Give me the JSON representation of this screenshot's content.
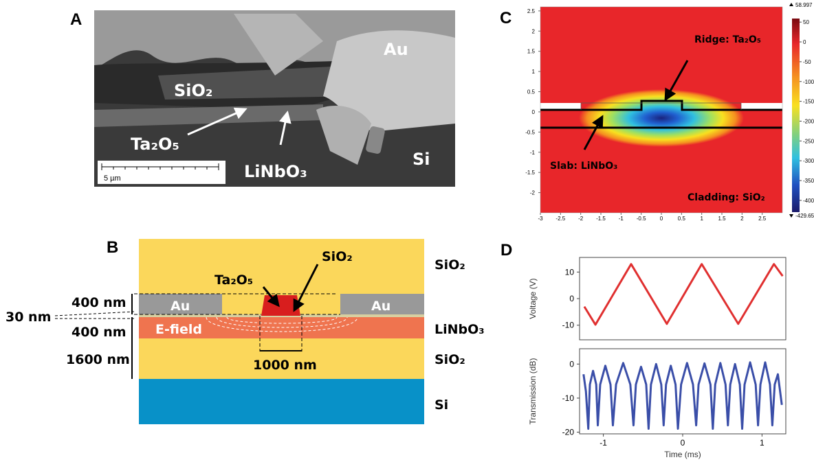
{
  "panel_labels": [
    "A",
    "B",
    "C",
    "D"
  ],
  "sem": {
    "labels": [
      "Au",
      "SiO₂",
      "Ta₂O₅",
      "LiNbO₃",
      "Si"
    ],
    "scale_bar": "5 µm"
  },
  "schematic": {
    "layers": [
      "SiO₂",
      "LiNbO₃",
      "SiO₂",
      "Si"
    ],
    "ridge": "Ta₂O₅",
    "ridge_top": "SiO₂",
    "electrodes": [
      "Au",
      "Au"
    ],
    "field": "E-field",
    "dimensions": [
      "400 nm",
      "30 nm",
      "400 nm",
      "1600 nm",
      "1000 nm"
    ]
  },
  "chart_data": [
    {
      "type": "heatmap",
      "annotations": [
        "Ridge: Ta₂O₅",
        "Slab: LiNbO₃",
        "Cladding: SiO₂"
      ],
      "xlim": [
        -3,
        3
      ],
      "xticks": [
        -3,
        -2.5,
        -2,
        -1.5,
        -1,
        -0.5,
        0,
        0.5,
        1,
        1.5,
        2,
        2.5
      ],
      "ylim": [
        -2.5,
        2.6
      ],
      "yticks": [
        -2,
        -1.5,
        -1,
        -0.5,
        0,
        0.5,
        1,
        1.5,
        2,
        2.5
      ],
      "colorbar_lim": [
        -429.65,
        58.997
      ],
      "colorbar_ticks": [
        50,
        0,
        -50,
        -100,
        -150,
        -200,
        -250,
        -300,
        -350,
        -400
      ]
    },
    {
      "type": "line",
      "y_label": "Voltage (V)",
      "xlim": [
        -1.3,
        1.3
      ],
      "ylim": [
        -15.5,
        15.5
      ],
      "yticks": [
        -10,
        0,
        10
      ],
      "x": [
        -1.24,
        -1.1,
        -0.65,
        -0.2,
        0.24,
        0.7,
        1.15,
        1.26
      ],
      "series": [
        {
          "color": "#e03030",
          "values": [
            -3,
            -9.8,
            13,
            -9.5,
            13,
            -9.5,
            13,
            8.5
          ]
        }
      ]
    },
    {
      "type": "line",
      "y_label": "Transmission (dB)",
      "x_label": "Time (ms)",
      "xlim": [
        -1.3,
        1.3
      ],
      "xticks": [
        -1,
        0,
        1
      ],
      "ylim": [
        -20.5,
        4.5
      ],
      "yticks": [
        -20,
        -10,
        0
      ],
      "x": [
        -1.25,
        -1.22,
        -1.19,
        -1.17,
        -1.13,
        -1.09,
        -1.07,
        -1.04,
        -0.975,
        -0.91,
        -0.88,
        -0.84,
        -0.75,
        -0.66,
        -0.62,
        -0.59,
        -0.525,
        -0.46,
        -0.43,
        -0.4,
        -0.335,
        -0.27,
        -0.24,
        -0.21,
        -0.15,
        -0.09,
        -0.06,
        -0.02,
        0.055,
        0.13,
        0.17,
        0.2,
        0.275,
        0.35,
        0.38,
        0.41,
        0.475,
        0.54,
        0.57,
        0.6,
        0.66,
        0.72,
        0.75,
        0.78,
        0.85,
        0.92,
        0.95,
        0.98,
        1.04,
        1.1,
        1.13,
        1.16,
        1.2,
        1.25
      ],
      "series": [
        {
          "color": "#3a4ea8",
          "values": [
            -3,
            -8,
            -19,
            -6,
            -2,
            -6,
            -18,
            -6,
            -0.5,
            -6,
            -18,
            -6,
            0.3,
            -6,
            -18,
            -6,
            -0.8,
            -6,
            -19,
            -6,
            0,
            -6,
            -18,
            -6,
            -0.5,
            -6,
            -19,
            -6,
            0.3,
            -6,
            -18,
            -6,
            0.2,
            -6,
            -19,
            -6,
            0.3,
            -6,
            -18,
            -6,
            0,
            -6,
            -19,
            -6,
            0.5,
            -6,
            -18,
            -6,
            0.5,
            -6,
            -18,
            -6,
            -3,
            -12
          ]
        }
      ]
    }
  ]
}
